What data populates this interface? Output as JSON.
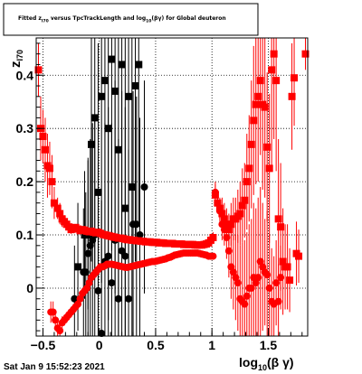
{
  "chart_data": {
    "type": "scatter",
    "title": {
      "pre": "Fitted  z",
      "sub1": "I70",
      "mid": "  versus TpcTrackLength and log",
      "sub2": "10",
      "post": "(βγ) for Global deuteron"
    },
    "xlabel": {
      "main": "log",
      "sub": "10",
      "post": "(β γ)"
    },
    "ylabel": {
      "main": "z",
      "sub": "I70"
    },
    "xlim": [
      -0.56,
      1.85
    ],
    "ylim": [
      -0.09,
      0.47
    ],
    "x_ticks": [
      -0.5,
      0,
      0.5,
      1,
      1.5
    ],
    "x_tick_labels": [
      "−0.5",
      "0",
      "0.5",
      "1",
      "1.5"
    ],
    "y_ticks": [
      0,
      0.1,
      0.2,
      0.3,
      0.4
    ],
    "y_tick_labels": [
      "0",
      "0.1",
      "0.2",
      "0.3",
      "0.4"
    ],
    "grid": true,
    "timestamp": "Sat Jan  9 15:52:23 2021",
    "series": [
      {
        "color": "#000000",
        "marker": "square",
        "x": [
          -0.19,
          -0.13,
          -0.1,
          -0.07,
          -0.04,
          -0.01,
          0.02,
          0.05,
          0.08,
          0.11,
          0.14,
          0.17,
          0.2,
          0.23,
          0.26,
          0.29,
          0.32,
          0.35
        ],
        "y": [
          0.04,
          0.1,
          0.1,
          0.27,
          0.32,
          0.18,
          0.36,
          0.39,
          0.3,
          0.43,
          0.37,
          0.26,
          0.42,
          0.15,
          0.36,
          0.19,
          0.38,
          0.42
        ],
        "err": [
          0.12,
          0.12,
          0.14,
          0.22,
          0.3,
          0.28,
          0.35,
          0.34,
          0.36,
          0.36,
          0.38,
          0.36,
          0.36,
          0.33,
          0.32,
          0.3,
          0.33,
          0.3
        ]
      },
      {
        "color": "#000000",
        "marker": "circle",
        "x": [
          -0.22,
          -0.14,
          -0.12,
          -0.1,
          -0.08,
          -0.06,
          -0.04,
          -0.01,
          0.02,
          0.05,
          0.08,
          0.11,
          0.14,
          0.17,
          0.2,
          0.23,
          0.26,
          0.3,
          0.33,
          0.36,
          0.4
        ],
        "y": [
          -0.02,
          0.03,
          0.03,
          0.065,
          0.08,
          0.09,
          0.1,
          -0.005,
          -0.085,
          0.05,
          0.06,
          0.01,
          0.09,
          -0.02,
          0.07,
          0.06,
          -0.02,
          0.12,
          0.12,
          0.1,
          0.19
        ],
        "err": [
          0.1,
          0.12,
          0.15,
          0.18,
          0.2,
          0.22,
          0.22,
          0.24,
          0.25,
          0.26,
          0.28,
          0.3,
          0.3,
          0.3,
          0.3,
          0.28,
          0.28,
          0.25,
          0.24,
          0.22,
          0.2
        ]
      },
      {
        "color": "#ff0000",
        "marker": "square",
        "x": [
          -0.54,
          -0.52,
          -0.5,
          -0.48,
          -0.46,
          -0.44,
          -0.42,
          -0.4,
          -0.37,
          -0.35,
          -0.33,
          -0.31,
          -0.29,
          -0.27,
          -0.25,
          -0.23,
          -0.21,
          -0.19,
          -0.17,
          -0.15,
          -0.13,
          -0.11,
          -0.09,
          -0.07,
          -0.05,
          -0.03,
          -0.01,
          0.01,
          0.03,
          0.05,
          0.07,
          0.09,
          0.11,
          0.13,
          0.15,
          0.17,
          0.19,
          0.21,
          0.23,
          0.25,
          0.27,
          0.29,
          0.31,
          0.33,
          0.35,
          0.37,
          0.39,
          0.41,
          0.43,
          0.45,
          0.47,
          0.49,
          0.51,
          0.53,
          0.55,
          0.57,
          0.59,
          0.61,
          0.63,
          0.65,
          0.67,
          0.69,
          0.71,
          0.73,
          0.75,
          0.77,
          0.79,
          0.81,
          0.83,
          0.85,
          0.87,
          0.89,
          0.91,
          0.93,
          0.95,
          0.97,
          0.99,
          1.01,
          1.03,
          1.05,
          1.07,
          1.09,
          1.11,
          1.13,
          1.15,
          1.17,
          1.19,
          1.21,
          1.23,
          1.25,
          1.27,
          1.29,
          1.31,
          1.33,
          1.35,
          1.37,
          1.39,
          1.41,
          1.43,
          1.45,
          1.47,
          1.49,
          1.51,
          1.53,
          1.55,
          1.57,
          1.59,
          1.61,
          1.63,
          1.65,
          1.67,
          1.69,
          1.71,
          1.73,
          1.75,
          1.77,
          1.83
        ],
        "y": [
          0.41,
          0.3,
          0.285,
          0.26,
          0.23,
          0.225,
          0.2,
          0.16,
          0.15,
          0.14,
          0.13,
          0.125,
          0.12,
          0.115,
          0.11,
          0.112,
          0.114,
          0.111,
          0.108,
          0.11,
          0.109,
          0.107,
          0.106,
          0.107,
          0.105,
          0.104,
          0.105,
          0.103,
          0.101,
          0.1,
          0.099,
          0.098,
          0.097,
          0.096,
          0.095,
          0.094,
          0.094,
          0.093,
          0.092,
          0.091,
          0.091,
          0.09,
          0.09,
          0.089,
          0.089,
          0.088,
          0.088,
          0.087,
          0.087,
          0.087,
          0.086,
          0.086,
          0.086,
          0.085,
          0.085,
          0.085,
          0.084,
          0.084,
          0.084,
          0.084,
          0.083,
          0.083,
          0.083,
          0.083,
          0.082,
          0.082,
          0.082,
          0.082,
          0.082,
          0.081,
          0.081,
          0.081,
          0.081,
          0.082,
          0.083,
          0.085,
          0.09,
          0.095,
          0.175,
          0.16,
          0.15,
          0.14,
          0.13,
          0.12,
          0.11,
          0.12,
          0.13,
          0.13,
          0.135,
          0.14,
          0.155,
          0.165,
          0.2,
          0.225,
          0.27,
          0.315,
          0.345,
          0.36,
          0.39,
          0.345,
          0.34,
          0.265,
          0.225,
          0.41,
          0.44,
          0.39,
          0.13,
          0.115,
          0.05,
          0.04,
          0.04,
          0.015,
          0.36,
          0.395,
          0.065,
          0.06,
          0.44
        ],
        "err": [
          0.05,
          0.06,
          0.05,
          0.06,
          0.06,
          0.05,
          0.05,
          0.03,
          0.02,
          0.02,
          0.015,
          0.012,
          0.01,
          0.01,
          0.008,
          0.006,
          0.005,
          0.005,
          0.004,
          0.004,
          0.003,
          0.003,
          0.003,
          0.003,
          0.002,
          0.002,
          0.002,
          0.002,
          0.002,
          0.002,
          0.002,
          0.002,
          0.002,
          0.002,
          0.002,
          0.002,
          0.002,
          0.002,
          0.002,
          0.002,
          0.002,
          0.002,
          0.002,
          0.002,
          0.002,
          0.002,
          0.002,
          0.002,
          0.002,
          0.002,
          0.002,
          0.002,
          0.002,
          0.002,
          0.002,
          0.002,
          0.002,
          0.002,
          0.002,
          0.002,
          0.002,
          0.002,
          0.002,
          0.002,
          0.002,
          0.002,
          0.002,
          0.002,
          0.002,
          0.002,
          0.002,
          0.002,
          0.003,
          0.003,
          0.004,
          0.005,
          0.006,
          0.01,
          0.02,
          0.02,
          0.02,
          0.03,
          0.03,
          0.03,
          0.03,
          0.04,
          0.04,
          0.04,
          0.05,
          0.06,
          0.07,
          0.07,
          0.09,
          0.1,
          0.12,
          0.14,
          0.15,
          0.16,
          0.14,
          0.16,
          0.17,
          0.14,
          0.14,
          0.18,
          0.16,
          0.17,
          0.15,
          0.12,
          0.1,
          0.08,
          0.08,
          0.06,
          0.1,
          0.09,
          0.06,
          0.05,
          0.03
        ]
      },
      {
        "color": "#ff0000",
        "marker": "circle",
        "x": [
          -0.43,
          -0.41,
          -0.39,
          -0.37,
          -0.35,
          -0.33,
          -0.31,
          -0.29,
          -0.27,
          -0.25,
          -0.23,
          -0.21,
          -0.19,
          -0.17,
          -0.15,
          -0.13,
          -0.11,
          -0.09,
          -0.07,
          -0.05,
          -0.03,
          -0.01,
          0.01,
          0.03,
          0.05,
          0.07,
          0.09,
          0.11,
          0.13,
          0.15,
          0.17,
          0.19,
          0.21,
          0.23,
          0.25,
          0.27,
          0.29,
          0.31,
          0.33,
          0.35,
          0.37,
          0.39,
          0.41,
          0.43,
          0.45,
          0.47,
          0.49,
          0.51,
          0.53,
          0.55,
          0.57,
          0.59,
          0.61,
          0.63,
          0.65,
          0.67,
          0.69,
          0.71,
          0.73,
          0.75,
          0.77,
          0.79,
          0.81,
          0.83,
          0.85,
          0.87,
          0.89,
          0.91,
          0.93,
          0.95,
          0.97,
          0.99,
          1.01,
          1.03,
          1.05,
          1.07,
          1.09,
          1.11,
          1.13,
          1.15,
          1.17,
          1.19,
          1.21,
          1.23,
          1.25,
          1.27,
          1.29,
          1.31,
          1.33,
          1.35,
          1.37,
          1.39,
          1.41,
          1.43,
          1.45,
          1.47,
          1.49,
          1.51,
          1.53,
          1.55,
          1.57,
          1.59,
          1.61
        ],
        "y": [
          -0.045,
          -0.045,
          -0.06,
          -0.075,
          -0.08,
          -0.065,
          -0.06,
          -0.055,
          -0.05,
          -0.045,
          -0.04,
          -0.035,
          -0.03,
          -0.02,
          -0.01,
          -0.005,
          0.0,
          0.01,
          0.02,
          0.025,
          0.03,
          0.035,
          0.04,
          0.04,
          0.042,
          0.045,
          0.045,
          0.045,
          0.044,
          0.043,
          0.042,
          0.041,
          0.04,
          0.039,
          0.039,
          0.04,
          0.041,
          0.042,
          0.043,
          0.044,
          0.045,
          0.046,
          0.047,
          0.048,
          0.049,
          0.05,
          0.05,
          0.051,
          0.052,
          0.053,
          0.054,
          0.055,
          0.057,
          0.058,
          0.06,
          0.062,
          0.063,
          0.064,
          0.065,
          0.066,
          0.066,
          0.066,
          0.066,
          0.066,
          0.066,
          0.066,
          0.065,
          0.064,
          0.063,
          0.062,
          0.06,
          0.06,
          0.06,
          0.18,
          0.16,
          0.145,
          0.12,
          0.11,
          0.095,
          0.07,
          0.04,
          0.03,
          0.02,
          0.01,
          -0.02,
          -0.025,
          -0.03,
          -0.015,
          0.0,
          0.0,
          0.02,
          0.01,
          0.02,
          0.05,
          0.04,
          0.03,
          0.025,
          0.0,
          -0.025,
          -0.03,
          0.01,
          -0.025,
          0.02
        ],
        "err": [
          0.02,
          0.02,
          0.02,
          0.015,
          0.015,
          0.012,
          0.01,
          0.01,
          0.008,
          0.008,
          0.006,
          0.006,
          0.005,
          0.005,
          0.004,
          0.004,
          0.004,
          0.003,
          0.003,
          0.003,
          0.003,
          0.003,
          0.003,
          0.003,
          0.002,
          0.002,
          0.002,
          0.002,
          0.002,
          0.002,
          0.002,
          0.002,
          0.002,
          0.002,
          0.002,
          0.002,
          0.002,
          0.002,
          0.002,
          0.002,
          0.002,
          0.002,
          0.002,
          0.002,
          0.002,
          0.002,
          0.002,
          0.002,
          0.002,
          0.002,
          0.002,
          0.002,
          0.002,
          0.002,
          0.002,
          0.002,
          0.002,
          0.002,
          0.002,
          0.002,
          0.002,
          0.002,
          0.002,
          0.002,
          0.002,
          0.002,
          0.002,
          0.002,
          0.002,
          0.002,
          0.003,
          0.003,
          0.004,
          0.02,
          0.02,
          0.02,
          0.03,
          0.03,
          0.04,
          0.05,
          0.06,
          0.07,
          0.08,
          0.09,
          0.1,
          0.11,
          0.12,
          0.12,
          0.12,
          0.13,
          0.14,
          0.14,
          0.15,
          0.14,
          0.12,
          0.1,
          0.12,
          0.1,
          0.1,
          0.09,
          0.08,
          0.07,
          0.06
        ]
      }
    ]
  }
}
